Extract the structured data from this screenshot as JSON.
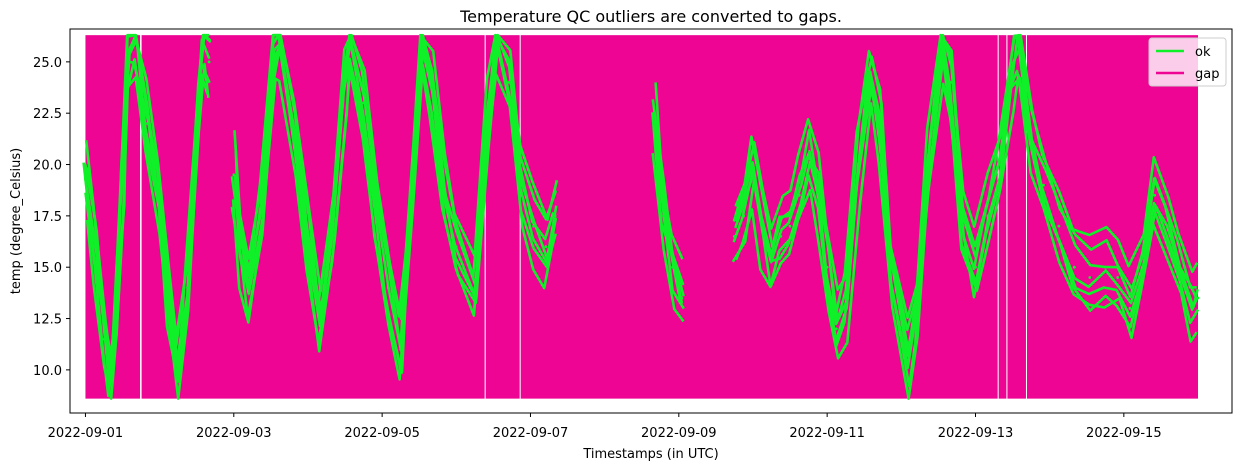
{
  "chart_data": {
    "type": "line",
    "title": "Temperature QC outliers are converted to gaps.",
    "xlabel": "Timestamps (in UTC)",
    "ylabel": "temp (degree_Celsius)",
    "x_tick_labels": [
      "2022-09-01",
      "2022-09-03",
      "2022-09-05",
      "2022-09-07",
      "2022-09-09",
      "2022-09-11",
      "2022-09-13",
      "2022-09-15"
    ],
    "y_tick_labels": [
      "10.0",
      "12.5",
      "15.0",
      "17.5",
      "20.0",
      "22.5",
      "25.0"
    ],
    "xlim": [
      "2022-08-31T19:00",
      "2022-09-16T11:00"
    ],
    "ylim": [
      7.9,
      26.6
    ],
    "grid": false,
    "legend": {
      "position": "top-right",
      "entries": [
        "ok",
        "gap"
      ]
    },
    "colors": {
      "ok": "#10f028",
      "gap": "#ee0594"
    },
    "gap_band": {
      "low": 8.6,
      "high": 26.3
    },
    "gap_intervals": [
      [
        "2022-09-01T00:00",
        "2022-09-01T17:40"
      ],
      [
        "2022-09-01T18:10",
        "2022-09-06T09:10"
      ],
      [
        "2022-09-06T09:30",
        "2022-09-06T20:30"
      ],
      [
        "2022-09-06T20:50",
        "2022-09-13T07:10"
      ],
      [
        "2022-09-13T07:30",
        "2022-09-13T10:00"
      ],
      [
        "2022-09-13T10:20",
        "2022-09-13T16:20"
      ],
      [
        "2022-09-13T16:40",
        "2022-09-16T00:00"
      ]
    ],
    "series": [
      {
        "name": "ok",
        "spread": 1.6,
        "bundle": 7,
        "points": [
          [
            "2022-09-01T00:00",
            19.5
          ],
          [
            "2022-09-01T03:00",
            16.0
          ],
          [
            "2022-09-01T06:00",
            11.5
          ],
          [
            "2022-09-01T08:00",
            9.5
          ],
          [
            "2022-09-01T10:00",
            13.0
          ],
          [
            "2022-09-01T12:00",
            19.0
          ],
          [
            "2022-09-01T14:00",
            25.0
          ],
          [
            "2022-09-01T16:00",
            26.0
          ],
          [
            "2022-09-01T20:00",
            22.0
          ],
          [
            "2022-09-02T00:00",
            18.0
          ],
          [
            "2022-09-02T03:00",
            13.0
          ],
          [
            "2022-09-02T06:00",
            10.0
          ],
          [
            "2022-09-02T09:00",
            14.0
          ],
          [
            "2022-09-02T12:00",
            22.0
          ],
          [
            "2022-09-02T14:00",
            26.0
          ],
          [
            "2022-09-02T16:00",
            25.0
          ],
          [
            "2022-09-02T20:00",
            null
          ],
          [
            "2022-09-03T00:00",
            19.5
          ],
          [
            "2022-09-03T02:00",
            16.0
          ],
          [
            "2022-09-03T05:00",
            14.0
          ],
          [
            "2022-09-03T09:00",
            18.0
          ],
          [
            "2022-09-03T13:00",
            25.5
          ],
          [
            "2022-09-03T15:00",
            26.2
          ],
          [
            "2022-09-03T20:00",
            21.0
          ],
          [
            "2022-09-04T00:00",
            16.5
          ],
          [
            "2022-09-04T04:00",
            12.5
          ],
          [
            "2022-09-04T08:00",
            17.0
          ],
          [
            "2022-09-04T12:00",
            24.0
          ],
          [
            "2022-09-04T14:00",
            26.2
          ],
          [
            "2022-09-04T18:00",
            23.0
          ],
          [
            "2022-09-04T22:00",
            18.0
          ],
          [
            "2022-09-05T02:00",
            14.0
          ],
          [
            "2022-09-05T06:00",
            11.0
          ],
          [
            "2022-09-05T10:00",
            19.0
          ],
          [
            "2022-09-05T13:00",
            26.0
          ],
          [
            "2022-09-05T16:00",
            24.0
          ],
          [
            "2022-09-05T20:00",
            19.0
          ],
          [
            "2022-09-06T00:00",
            16.0
          ],
          [
            "2022-09-06T06:00",
            14.0
          ],
          [
            "2022-09-06T10:00",
            22.0
          ],
          [
            "2022-09-06T13:00",
            26.2
          ],
          [
            "2022-09-06T17:00",
            24.0
          ],
          [
            "2022-09-06T21:00",
            19.0
          ],
          [
            "2022-09-07T01:00",
            17.0
          ],
          [
            "2022-09-07T05:00",
            16.0
          ],
          [
            "2022-09-07T08:00",
            17.5
          ],
          [
            "2022-09-07T09:00",
            null
          ],
          [
            "2022-09-08T16:00",
            22.0
          ],
          [
            "2022-09-08T19:00",
            17.5
          ],
          [
            "2022-09-08T22:00",
            15.0
          ],
          [
            "2022-09-09T01:00",
            13.5
          ],
          [
            "2022-09-09T02:00",
            null
          ],
          [
            "2022-09-09T18:00",
            16.5
          ],
          [
            "2022-09-09T21:00",
            17.5
          ],
          [
            "2022-09-10T00:00",
            20.0
          ],
          [
            "2022-09-10T03:00",
            17.0
          ],
          [
            "2022-09-10T06:00",
            15.5
          ],
          [
            "2022-09-10T09:00",
            16.5
          ],
          [
            "2022-09-10T12:00",
            17.0
          ],
          [
            "2022-09-10T15:00",
            18.5
          ],
          [
            "2022-09-10T18:00",
            20.5
          ],
          [
            "2022-09-10T21:00",
            18.5
          ],
          [
            "2022-09-11T00:00",
            15.0
          ],
          [
            "2022-09-11T03:00",
            12.0
          ],
          [
            "2022-09-11T06:00",
            13.5
          ],
          [
            "2022-09-11T10:00",
            20.0
          ],
          [
            "2022-09-11T14:00",
            24.5
          ],
          [
            "2022-09-11T17:00",
            22.0
          ],
          [
            "2022-09-11T21:00",
            15.0
          ],
          [
            "2022-09-12T02:00",
            10.5
          ],
          [
            "2022-09-12T05:00",
            13.0
          ],
          [
            "2022-09-12T09:00",
            20.0
          ],
          [
            "2022-09-12T13:00",
            26.0
          ],
          [
            "2022-09-12T16:00",
            24.0
          ],
          [
            "2022-09-12T20:00",
            17.0
          ],
          [
            "2022-09-13T00:00",
            15.0
          ],
          [
            "2022-09-13T04:00",
            17.5
          ],
          [
            "2022-09-13T08:00",
            20.0
          ],
          [
            "2022-09-13T12:00",
            24.5
          ],
          [
            "2022-09-13T14:00",
            25.5
          ],
          [
            "2022-09-13T18:00",
            21.5
          ],
          [
            "2022-09-13T22:00",
            19.0
          ],
          [
            "2022-09-14T03:00",
            17.0
          ],
          [
            "2022-09-14T08:00",
            15.0
          ],
          [
            "2022-09-14T13:00",
            14.5
          ],
          [
            "2022-09-14T18:00",
            15.0
          ],
          [
            "2022-09-14T22:00",
            14.5
          ],
          [
            "2022-09-15T02:00",
            13.0
          ],
          [
            "2022-09-15T06:00",
            15.0
          ],
          [
            "2022-09-15T10:00",
            18.5
          ],
          [
            "2022-09-15T14:00",
            17.0
          ],
          [
            "2022-09-15T18:00",
            15.0
          ],
          [
            "2022-09-15T22:00",
            13.0
          ],
          [
            "2022-09-16T00:00",
            13.5
          ]
        ]
      },
      {
        "name": "gap"
      }
    ]
  }
}
